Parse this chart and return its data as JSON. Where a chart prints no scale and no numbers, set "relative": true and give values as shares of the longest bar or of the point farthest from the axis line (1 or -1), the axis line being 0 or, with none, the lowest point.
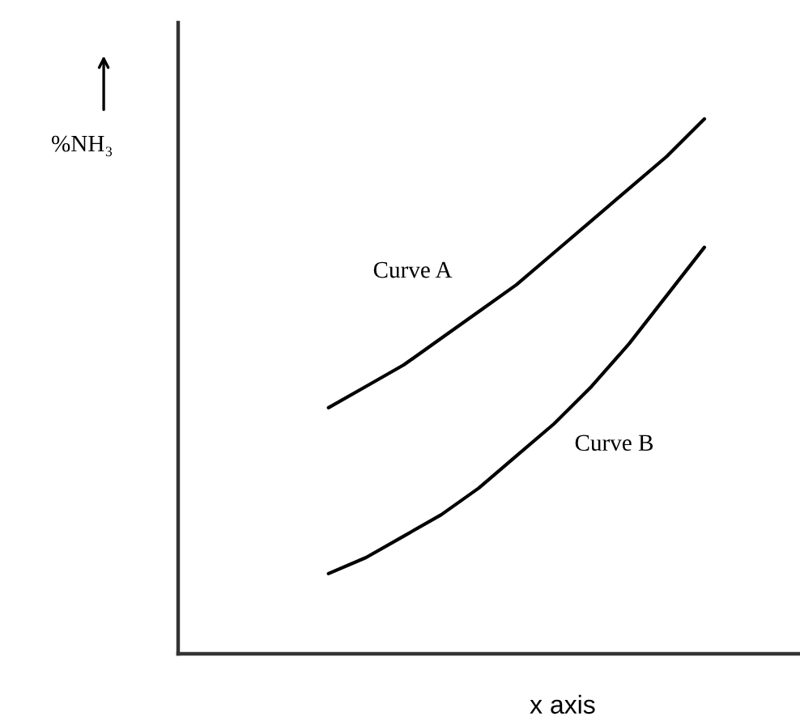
{
  "chart_data": {
    "type": "line",
    "ylabel": "%NH₃",
    "xlabel": "x axis",
    "relative": true,
    "categories": [
      null,
      null,
      null,
      null,
      null,
      null,
      null,
      null,
      null,
      null,
      null,
      null,
      null,
      null,
      null,
      null,
      null
    ],
    "series": [
      {
        "name": "Curve A",
        "color": "#000000",
        "values": [
          null,
          null,
          null,
          null,
          0.46,
          0.5,
          0.54,
          0.59,
          0.64,
          0.69,
          0.75,
          0.81,
          0.87,
          0.93,
          1.0,
          null,
          null
        ]
      },
      {
        "name": "Curve B",
        "color": "#000000",
        "values": [
          null,
          null,
          null,
          null,
          0.15,
          0.18,
          0.22,
          0.26,
          0.31,
          0.37,
          0.43,
          0.5,
          0.58,
          0.67,
          0.76,
          null,
          null
        ]
      }
    ]
  }
}
